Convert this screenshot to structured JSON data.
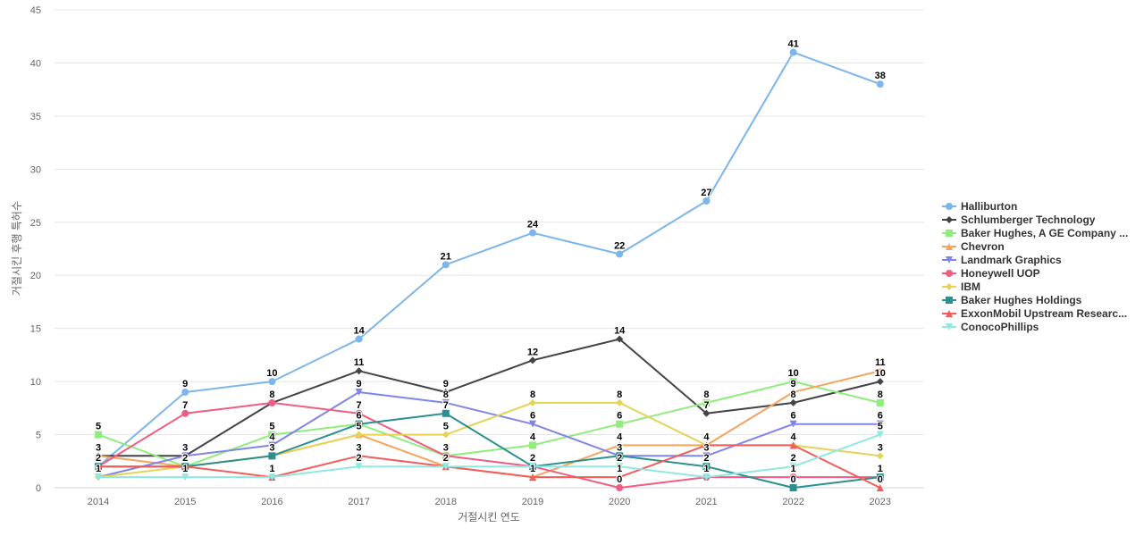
{
  "chart_data": {
    "type": "line",
    "title": "",
    "xlabel": "거절시킨 연도",
    "ylabel": "거절시킨 후행 특허수",
    "x": [
      "2014",
      "2015",
      "2016",
      "2017",
      "2018",
      "2019",
      "2020",
      "2021",
      "2022",
      "2023"
    ],
    "ylim": [
      0,
      45
    ],
    "yticks": [
      0,
      5,
      10,
      15,
      20,
      25,
      30,
      35,
      40,
      45
    ],
    "grid": true,
    "legend_position": "right",
    "series": [
      {
        "name": "Halliburton",
        "color": "#7cb5ec",
        "marker": "circle",
        "values": [
          2,
          9,
          10,
          14,
          21,
          24,
          22,
          27,
          41,
          38
        ]
      },
      {
        "name": "Schlumberger Technology",
        "color": "#434348",
        "marker": "diamond",
        "values": [
          3,
          3,
          8,
          11,
          9,
          12,
          14,
          7,
          8,
          10
        ]
      },
      {
        "name": "Baker Hughes, A GE Company ...",
        "color": "#90ed7d",
        "marker": "square",
        "values": [
          5,
          2,
          5,
          6,
          3,
          4,
          6,
          8,
          10,
          8
        ]
      },
      {
        "name": "Chevron",
        "color": "#f7a35c",
        "marker": "triangle",
        "values": [
          3,
          2,
          3,
          5,
          2,
          1,
          4,
          4,
          9,
          11
        ]
      },
      {
        "name": "Landmark Graphics",
        "color": "#8085e9",
        "marker": "triangle-down",
        "values": [
          1,
          3,
          4,
          9,
          8,
          6,
          3,
          3,
          6,
          6
        ]
      },
      {
        "name": "Honeywell UOP",
        "color": "#f15c80",
        "marker": "circle",
        "values": [
          2,
          7,
          8,
          7,
          3,
          2,
          0,
          1,
          1,
          1
        ]
      },
      {
        "name": "IBM",
        "color": "#e4d354",
        "marker": "diamond",
        "values": [
          1,
          2,
          3,
          5,
          5,
          8,
          8,
          4,
          4,
          3
        ]
      },
      {
        "name": "Baker Hughes Holdings",
        "color": "#2b908f",
        "marker": "square",
        "values": [
          2,
          2,
          3,
          6,
          7,
          2,
          3,
          2,
          0,
          1
        ]
      },
      {
        "name": "ExxonMobil Upstream Researc...",
        "color": "#f45b5b",
        "marker": "triangle",
        "values": [
          2,
          2,
          1,
          3,
          2,
          1,
          1,
          4,
          4,
          0
        ]
      },
      {
        "name": "ConocoPhillips",
        "color": "#91e8e1",
        "marker": "triangle-down",
        "values": [
          1,
          1,
          1,
          2,
          2,
          2,
          2,
          1,
          2,
          5
        ]
      }
    ]
  }
}
